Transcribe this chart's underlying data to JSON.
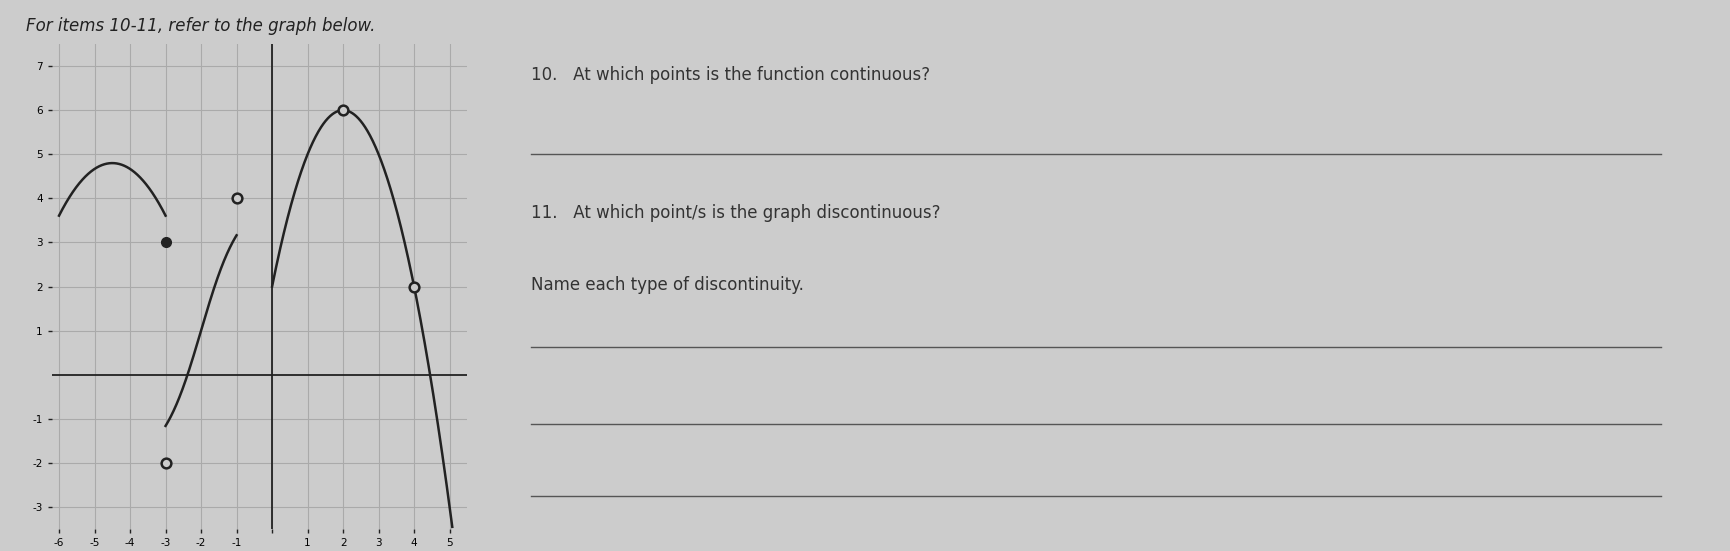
{
  "title": "For items 10-11, refer to the graph below.",
  "q10_text": "10.   At which points is the function continuous?",
  "q11_text1": "11.   At which point/s is the graph discontinuous?",
  "q11_text2": "Name each type of discontinuity.",
  "bg_color": "#cccccc",
  "grid_color": "#aaaaaa",
  "axis_color": "#222222",
  "curve_color": "#222222",
  "line_color": "#555555",
  "xlim": [
    -6.2,
    5.5
  ],
  "ylim": [
    -3.5,
    7.5
  ],
  "xticks": [
    -6,
    -5,
    -4,
    -3,
    -2,
    -1,
    0,
    1,
    2,
    3,
    4,
    5
  ],
  "yticks": [
    -3,
    -2,
    -1,
    1,
    2,
    3,
    4,
    5,
    6,
    7
  ],
  "figsize": [
    17.31,
    5.51
  ],
  "dpi": 100
}
